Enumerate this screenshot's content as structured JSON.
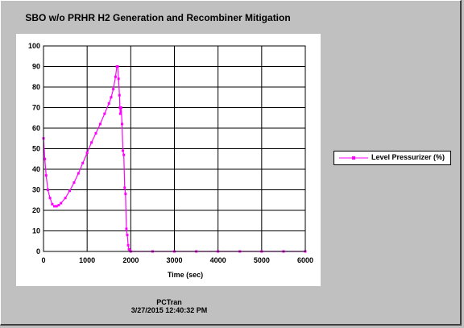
{
  "window": {
    "title": "SBO w/o PRHR H2 Generation and Recombiner Mitigation",
    "footer_app": "PCTran",
    "footer_timestamp": "3/27/2015 12:40:32 PM"
  },
  "colors": {
    "background": "#c0c0c0",
    "plot_bg": "#ffffff",
    "series": "#ff00ff"
  },
  "chart_data": {
    "type": "line",
    "title": "SBO w/o PRHR H2 Generation and Recombiner Mitigation",
    "xlabel": "Time (sec)",
    "ylabel": "",
    "xlim": [
      0,
      6000
    ],
    "ylim": [
      0,
      100
    ],
    "xticks": [
      "0",
      "1000",
      "2000",
      "3000",
      "4000",
      "5000",
      "6000"
    ],
    "yticks": [
      "0",
      "10",
      "20",
      "30",
      "40",
      "50",
      "60",
      "70",
      "80",
      "90",
      "100"
    ],
    "grid": true,
    "legend_position": "right",
    "series": [
      {
        "name": "Level Pressurizer (%)",
        "x": [
          0,
          30,
          60,
          100,
          150,
          200,
          250,
          300,
          350,
          400,
          500,
          600,
          700,
          800,
          900,
          1000,
          1100,
          1200,
          1300,
          1400,
          1500,
          1550,
          1600,
          1650,
          1680,
          1700,
          1720,
          1740,
          1750,
          1760,
          1780,
          1800,
          1820,
          1840,
          1860,
          1880,
          1900,
          1920,
          1940,
          1960,
          1980,
          2000,
          2500,
          3000,
          3500,
          4000,
          4500,
          5000,
          5500,
          6000
        ],
        "y": [
          55,
          45,
          37,
          30,
          26,
          23,
          22,
          22,
          22.5,
          23.5,
          26,
          29.5,
          33.5,
          38,
          43,
          48,
          53,
          57.5,
          62,
          67,
          72,
          75,
          79,
          85,
          90,
          90,
          84,
          76,
          70,
          67,
          70,
          62,
          49,
          47,
          31,
          28,
          11,
          8,
          3,
          1,
          0.5,
          0,
          0,
          0,
          0,
          0,
          0,
          0,
          0,
          0
        ]
      }
    ]
  }
}
